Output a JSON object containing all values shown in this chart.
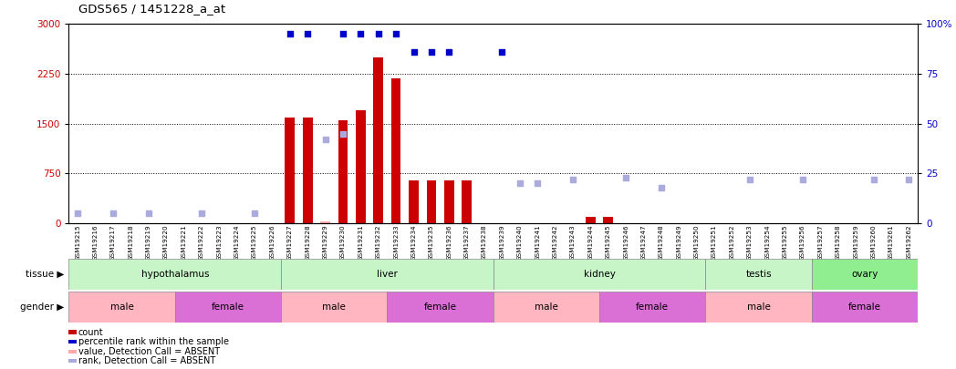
{
  "title": "GDS565 / 1451228_a_at",
  "samples": [
    "GSM19215",
    "GSM19216",
    "GSM19217",
    "GSM19218",
    "GSM19219",
    "GSM19220",
    "GSM19221",
    "GSM19222",
    "GSM19223",
    "GSM19224",
    "GSM19225",
    "GSM19226",
    "GSM19227",
    "GSM19228",
    "GSM19229",
    "GSM19230",
    "GSM19231",
    "GSM19232",
    "GSM19233",
    "GSM19234",
    "GSM19235",
    "GSM19236",
    "GSM19237",
    "GSM19238",
    "GSM19239",
    "GSM19240",
    "GSM19241",
    "GSM19242",
    "GSM19243",
    "GSM19244",
    "GSM19245",
    "GSM19246",
    "GSM19247",
    "GSM19248",
    "GSM19249",
    "GSM19250",
    "GSM19251",
    "GSM19252",
    "GSM19253",
    "GSM19254",
    "GSM19255",
    "GSM19256",
    "GSM19257",
    "GSM19258",
    "GSM19259",
    "GSM19260",
    "GSM19261",
    "GSM19262"
  ],
  "red_bar_x": [
    12,
    13,
    15,
    16,
    17,
    18,
    19,
    20,
    21,
    22,
    29,
    30
  ],
  "red_bar_h": [
    1590,
    1590,
    1550,
    1700,
    2500,
    2180,
    650,
    650,
    645,
    645,
    100,
    100
  ],
  "pink_bar_x": [
    14
  ],
  "pink_bar_h": [
    30
  ],
  "blue_dark_x": [
    12,
    13,
    15,
    16,
    17,
    18,
    19,
    20,
    21,
    24
  ],
  "blue_dark_pct": [
    95,
    95,
    95,
    95,
    95,
    95,
    86,
    86,
    86,
    86
  ],
  "blue_light_x": [
    0,
    2,
    4,
    7,
    10,
    14,
    15,
    25,
    26,
    28,
    31,
    33,
    38,
    41,
    45,
    47
  ],
  "blue_light_pct": [
    5,
    5,
    5,
    5,
    5,
    42,
    45,
    20,
    20,
    22,
    23,
    18,
    22,
    22,
    22,
    22
  ],
  "tissue_regions": [
    {
      "label": "hypothalamus",
      "start": 0,
      "end": 12,
      "color": "#c8f5c8"
    },
    {
      "label": "liver",
      "start": 12,
      "end": 24,
      "color": "#c8f5c8"
    },
    {
      "label": "kidney",
      "start": 24,
      "end": 36,
      "color": "#c8f5c8"
    },
    {
      "label": "testis",
      "start": 36,
      "end": 42,
      "color": "#c8f5c8"
    },
    {
      "label": "ovary",
      "start": 42,
      "end": 48,
      "color": "#90ee90"
    }
  ],
  "gender_regions": [
    {
      "label": "male",
      "start": 0,
      "end": 6,
      "color": "#ffb6c1"
    },
    {
      "label": "female",
      "start": 6,
      "end": 12,
      "color": "#da70d6"
    },
    {
      "label": "male",
      "start": 12,
      "end": 18,
      "color": "#ffb6c1"
    },
    {
      "label": "female",
      "start": 18,
      "end": 24,
      "color": "#da70d6"
    },
    {
      "label": "male",
      "start": 24,
      "end": 30,
      "color": "#ffb6c1"
    },
    {
      "label": "female",
      "start": 30,
      "end": 36,
      "color": "#da70d6"
    },
    {
      "label": "male",
      "start": 36,
      "end": 42,
      "color": "#ffb6c1"
    },
    {
      "label": "female",
      "start": 42,
      "end": 48,
      "color": "#da70d6"
    }
  ],
  "ylim_left": [
    0,
    3000
  ],
  "ylim_right": [
    0,
    100
  ],
  "yticks_left": [
    0,
    750,
    1500,
    2250,
    3000
  ],
  "yticks_right": [
    0,
    25,
    50,
    75,
    100
  ],
  "bar_color": "#cc0000",
  "bar_absent_color": "#ffaaaa",
  "dot_present_color": "#0000cc",
  "dot_absent_color": "#aaaadd",
  "legend": [
    {
      "label": "count",
      "color": "#cc0000"
    },
    {
      "label": "percentile rank within the sample",
      "color": "#0000cc"
    },
    {
      "label": "value, Detection Call = ABSENT",
      "color": "#ffaaaa"
    },
    {
      "label": "rank, Detection Call = ABSENT",
      "color": "#aaaadd"
    }
  ]
}
